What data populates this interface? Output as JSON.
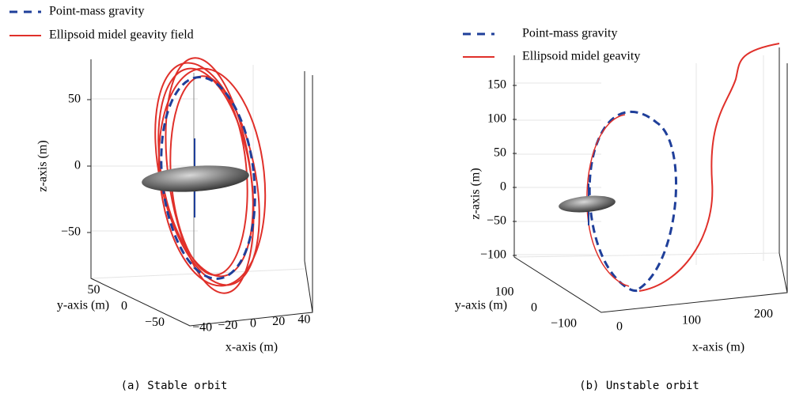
{
  "chart_data": [
    {
      "type": "line3d",
      "caption": "(a) Stable orbit",
      "xlabel": "x-axis (m)",
      "ylabel": "y-axis (m)",
      "zlabel": "z-axis (m)",
      "series": [
        {
          "name": "Point-mass gravity",
          "color": "#1f3f9a"
        },
        {
          "name": "Ellipsoid midel geavity field",
          "color": "#e0302a"
        }
      ],
      "xticks": [
        {
          "value": -40,
          "label": "−40"
        },
        {
          "value": -20,
          "label": "−20"
        },
        0,
        20,
        40
      ],
      "yticks": [
        50,
        0,
        {
          "value": -50,
          "label": "−50"
        }
      ],
      "zticks": [
        50,
        0,
        {
          "value": -50,
          "label": "−50"
        }
      ]
    },
    {
      "type": "line3d",
      "caption": "(b) Unstable orbit",
      "xlabel": "x-axis (m)",
      "ylabel": "y-axis (m)",
      "zlabel": "z-axis (m)",
      "series": [
        {
          "name": "Point-mass gravity",
          "color": "#1f3f9a"
        },
        {
          "name": "Ellipsoid midel geavity",
          "color": "#e0302a"
        }
      ],
      "xticks": [
        0,
        100,
        200
      ],
      "yticks": [
        100,
        0,
        {
          "value": -100,
          "label": "−100"
        }
      ],
      "zticks": [
        150,
        100,
        50,
        0,
        {
          "value": -50,
          "label": "−50"
        },
        {
          "value": -100,
          "label": "−100"
        }
      ]
    }
  ]
}
